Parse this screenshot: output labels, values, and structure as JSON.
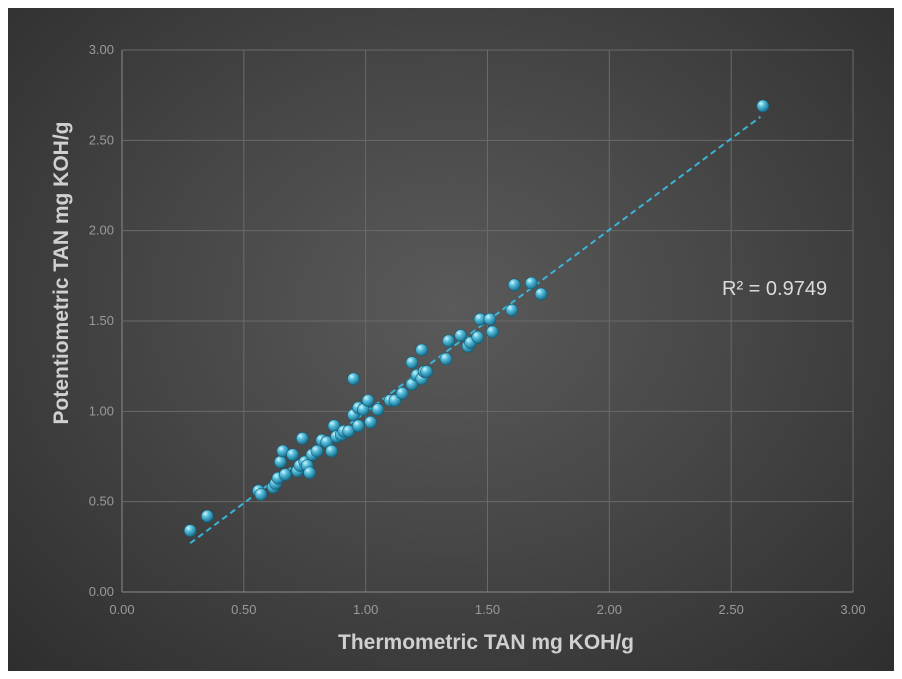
{
  "chart_data": {
    "type": "scatter",
    "title": "",
    "xlabel": "Thermometric TAN mg KOH/g",
    "ylabel": "Potentiometric TAN mg KOH/g",
    "xlim": [
      0,
      3
    ],
    "ylim": [
      0,
      3
    ],
    "xticks": [
      "0.00",
      "0.50",
      "1.00",
      "1.50",
      "2.00",
      "2.50",
      "3.00"
    ],
    "yticks": [
      "0.00",
      "0.50",
      "1.00",
      "1.50",
      "2.00",
      "2.50",
      "3.00"
    ],
    "grid": true,
    "annotation": "R² = 0.9749",
    "trendline": {
      "type": "linear",
      "x": [
        0.28,
        2.62
      ],
      "y": [
        0.27,
        2.63
      ]
    },
    "colors": {
      "point": "#2ea3c8",
      "trendline": "#3ab4d6"
    },
    "points": [
      [
        0.28,
        0.34
      ],
      [
        0.35,
        0.42
      ],
      [
        0.56,
        0.56
      ],
      [
        0.57,
        0.54
      ],
      [
        0.62,
        0.58
      ],
      [
        0.63,
        0.6
      ],
      [
        0.64,
        0.63
      ],
      [
        0.65,
        0.72
      ],
      [
        0.66,
        0.78
      ],
      [
        0.67,
        0.65
      ],
      [
        0.7,
        0.76
      ],
      [
        0.72,
        0.67
      ],
      [
        0.73,
        0.7
      ],
      [
        0.74,
        0.85
      ],
      [
        0.75,
        0.72
      ],
      [
        0.76,
        0.7
      ],
      [
        0.77,
        0.66
      ],
      [
        0.78,
        0.76
      ],
      [
        0.8,
        0.78
      ],
      [
        0.82,
        0.84
      ],
      [
        0.84,
        0.83
      ],
      [
        0.86,
        0.78
      ],
      [
        0.87,
        0.92
      ],
      [
        0.88,
        0.86
      ],
      [
        0.9,
        0.87
      ],
      [
        0.91,
        0.89
      ],
      [
        0.93,
        0.89
      ],
      [
        0.95,
        0.98
      ],
      [
        0.95,
        1.18
      ],
      [
        0.97,
        0.92
      ],
      [
        0.97,
        1.02
      ],
      [
        0.99,
        1.01
      ],
      [
        1.01,
        1.06
      ],
      [
        1.02,
        0.94
      ],
      [
        1.05,
        1.01
      ],
      [
        1.1,
        1.06
      ],
      [
        1.12,
        1.06
      ],
      [
        1.15,
        1.1
      ],
      [
        1.19,
        1.15
      ],
      [
        1.19,
        1.27
      ],
      [
        1.21,
        1.2
      ],
      [
        1.23,
        1.18
      ],
      [
        1.23,
        1.34
      ],
      [
        1.24,
        1.22
      ],
      [
        1.25,
        1.22
      ],
      [
        1.33,
        1.29
      ],
      [
        1.34,
        1.39
      ],
      [
        1.39,
        1.42
      ],
      [
        1.42,
        1.36
      ],
      [
        1.43,
        1.38
      ],
      [
        1.46,
        1.41
      ],
      [
        1.47,
        1.51
      ],
      [
        1.51,
        1.51
      ],
      [
        1.52,
        1.44
      ],
      [
        1.6,
        1.56
      ],
      [
        1.61,
        1.7
      ],
      [
        1.68,
        1.71
      ],
      [
        1.72,
        1.65
      ],
      [
        2.63,
        2.69
      ]
    ]
  }
}
